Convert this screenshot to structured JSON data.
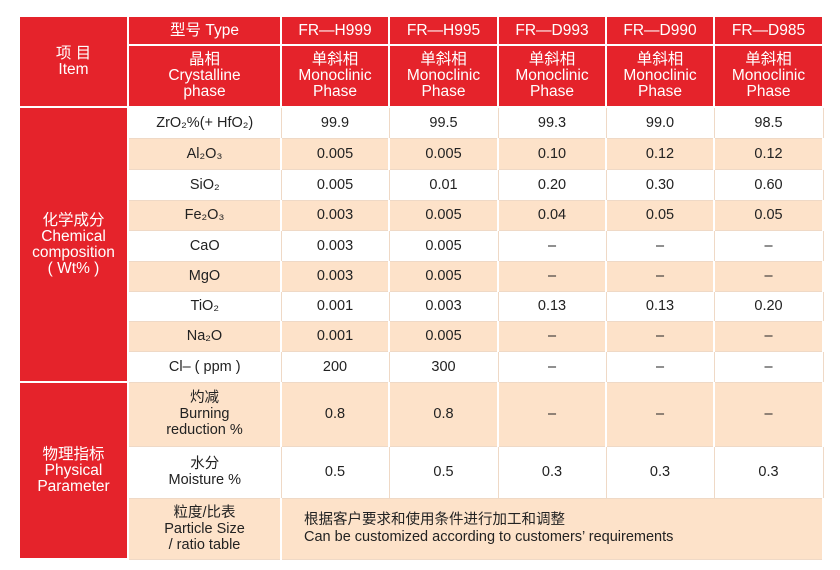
{
  "header": {
    "item_zh": "项 目",
    "item_en": "Item",
    "type_label": "型号 Type",
    "phase_zh": "晶相",
    "phase_en": [
      "Crystalline",
      "phase"
    ],
    "models": [
      "FR—H999",
      "FR—H995",
      "FR—D993",
      "FR—D990",
      "FR—D985"
    ],
    "phases": [
      {
        "zh": "单斜相",
        "en": [
          "Monoclinic",
          "Phase"
        ]
      },
      {
        "zh": "单斜相",
        "en": [
          "Monoclinic",
          "Phase"
        ]
      },
      {
        "zh": "单斜相",
        "en": [
          "Monoclinic",
          "Phase"
        ]
      },
      {
        "zh": "单斜相",
        "en": [
          "Monoclinic",
          "Phase"
        ]
      },
      {
        "zh": "单斜相",
        "en": [
          "Monoclinic",
          "Phase"
        ]
      }
    ]
  },
  "chemical": {
    "label": [
      "化学成分",
      "Chemical",
      "composition",
      "( Wt% )"
    ],
    "rows": [
      {
        "name": "ZrO₂%(+ HfO₂)",
        "values": [
          "99.9",
          "99.5",
          "99.3",
          "99.0",
          "98.5"
        ]
      },
      {
        "name": "Al₂O₃",
        "values": [
          "0.005",
          "0.005",
          "0.10",
          "0.12",
          "0.12"
        ]
      },
      {
        "name": "SiO₂",
        "values": [
          "0.005",
          "0.01",
          "0.20",
          "0.30",
          "0.60"
        ]
      },
      {
        "name": "Fe₂O₃",
        "values": [
          "0.003",
          "0.005",
          "0.04",
          "0.05",
          "0.05"
        ]
      },
      {
        "name": "CaO",
        "values": [
          "0.003",
          "0.005",
          "–",
          "–",
          "–"
        ]
      },
      {
        "name": "MgO",
        "values": [
          "0.003",
          "0.005",
          "–",
          "–",
          "–"
        ]
      },
      {
        "name": "TiO₂",
        "values": [
          "0.001",
          "0.003",
          "0.13",
          "0.13",
          "0.20"
        ]
      },
      {
        "name": "Na₂O",
        "values": [
          "0.001",
          "0.005",
          "–",
          "–",
          "–"
        ]
      },
      {
        "name": "Cl– ( ppm )",
        "values": [
          "200",
          "300",
          "–",
          "–",
          "–"
        ]
      }
    ]
  },
  "physical": {
    "label": [
      "物理指标",
      "Physical",
      "Parameter"
    ],
    "rows": [
      {
        "name": [
          "灼减",
          "Burning",
          "reduction %"
        ],
        "values": [
          "0.8",
          "0.8",
          "–",
          "–",
          "–"
        ]
      },
      {
        "name": [
          "水分",
          "Moisture %"
        ],
        "values": [
          "0.5",
          "0.5",
          "0.3",
          "0.3",
          "0.3"
        ]
      }
    ],
    "particle": {
      "name": [
        "粒度/比表",
        "Particle Size",
        "/ ratio table"
      ],
      "note": [
        "根据客户要求和使用条件进行加工和调整",
        "Can be customized according to customers’  requirements"
      ]
    }
  }
}
